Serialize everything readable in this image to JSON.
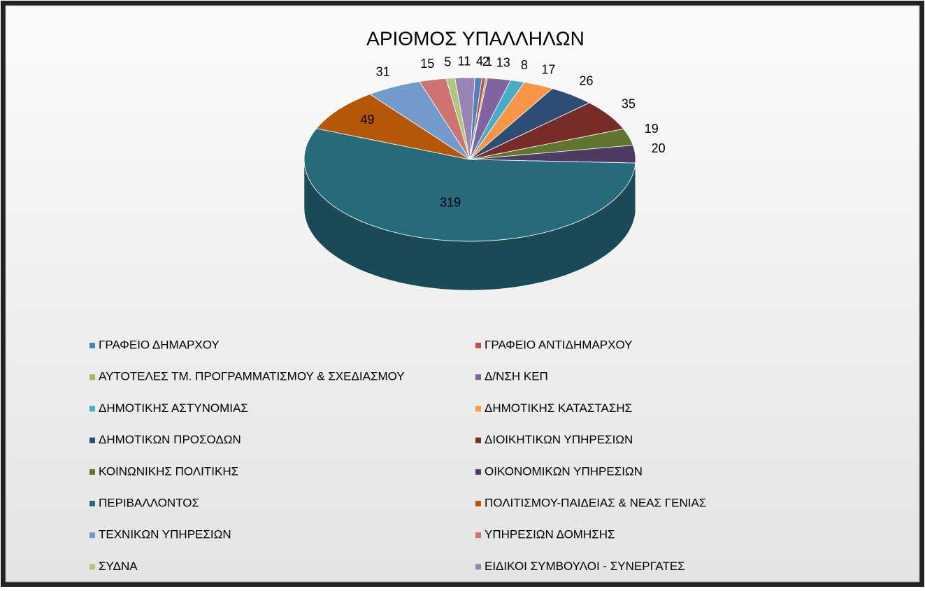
{
  "chart_data": {
    "type": "pie",
    "title": "ΑΡΙΘΜΟΣ ΥΠΑΛΛΗΛΩΝ",
    "categories": [
      "ΓΡΑΦΕΙΟ ΔΗΜΑΡΧΟΥ",
      "ΓΡΑΦΕΙΟ ΑΝΤΙΔΗΜΑΡΧΟΥ",
      "ΑΥΤΟΤΕΛΕΣ ΤΜ. ΠΡΟΓΡΑΜΜΑΤΙΣΜΟΥ & ΣΧΕΔΙΑΣΜΟΥ",
      "Δ/ΝΣΗ ΚΕΠ",
      "ΔΗΜΟΤΙΚΗΣ ΑΣΤΥΝΟΜΙΑΣ",
      "ΔΗΜΟΤΙΚΗΣ ΚΑΤΑΣΤΑΣΗΣ",
      "ΔΗΜΟΤΙΚΩΝ ΠΡΟΣΟΔΩΝ",
      "ΔΙΟΙΚΗΤΙΚΩΝ ΥΠΗΡΕΣΙΩΝ",
      "ΚΟΙΝΩΝΙΚΗΣ ΠΟΛΙΤΙΚΗΣ",
      "ΟΙΚΟΝΟΜΙΚΩΝ ΥΠΗΡΕΣΙΩΝ",
      "ΠΕΡΙΒΑΛΛΟΝΤΟΣ",
      "ΠΟΛΙΤΙΣΜΟΥ-ΠΑΙΔΕΙΑΣ & ΝΕΑΣ ΓΕΝΙΑΣ",
      "ΤΕΧΝΙΚΩΝ ΥΠΗΡΕΣΙΩΝ",
      "ΥΠΗΡΕΣΙΩΝ ΔΟΜΗΣΗΣ",
      "ΣΥΔΝΑ",
      "ΕΙΔΙΚΟΙ ΣΥΜΒΟΥΛΟΙ - ΣΥΝΕΡΓΑΤΕΣ"
    ],
    "values": [
      4,
      2,
      1,
      13,
      8,
      17,
      26,
      35,
      19,
      20,
      319,
      49,
      31,
      15,
      5,
      11
    ],
    "colors": [
      "#4F81BD",
      "#C0504D",
      "#9BBB59",
      "#8064A2",
      "#4BACC6",
      "#F79646",
      "#2C4D75",
      "#772C2A",
      "#5F7530",
      "#4D3B62",
      "#276A7C",
      "#B65708",
      "#729ACA",
      "#CD7371",
      "#AFC97A",
      "#9983B5"
    ]
  }
}
